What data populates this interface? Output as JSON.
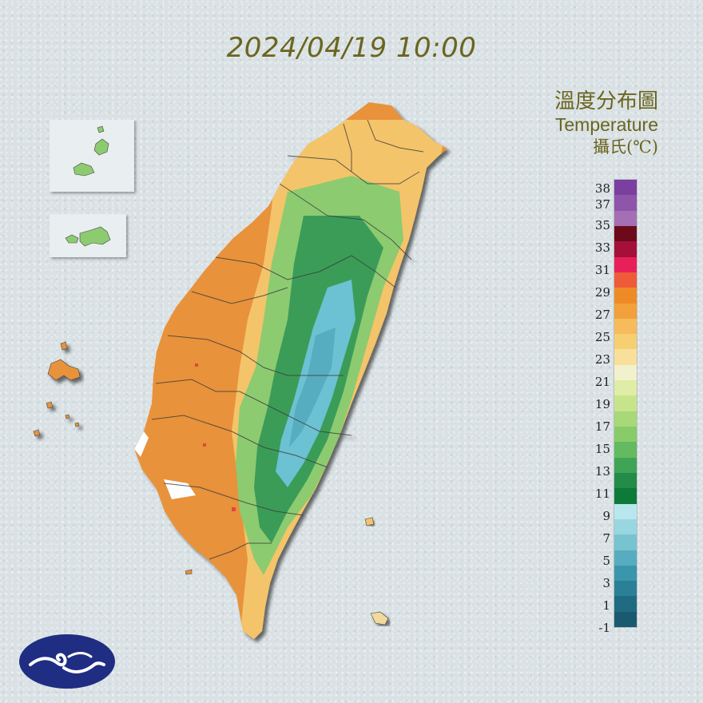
{
  "header": {
    "datetime": "2024/04/19 10:00"
  },
  "legend": {
    "title_zh": "溫度分布圖",
    "title_en": "Temperature",
    "unit": "攝氏(℃)",
    "ticks": [
      "38",
      "37",
      "35",
      "33",
      "31",
      "29",
      "27",
      "25",
      "23",
      "21",
      "19",
      "17",
      "15",
      "13",
      "11",
      "9",
      "7",
      "5",
      "3",
      "1",
      "-1"
    ],
    "colors": [
      "#7b3fa0",
      "#8e55aa",
      "#a46fb4",
      "#6d0a1a",
      "#a4103a",
      "#e8205a",
      "#ef5a3a",
      "#ef8b26",
      "#f2a03a",
      "#f6bc5c",
      "#f6cf73",
      "#f8e09a",
      "#f2f1cd",
      "#dfeda6",
      "#c8e48a",
      "#a8d877",
      "#88cc6a",
      "#63ba60",
      "#3fa455",
      "#238c48",
      "#0e7a3a",
      "#b9e7ee",
      "#98d6e0",
      "#78c3d0",
      "#57adbf",
      "#3a96ab",
      "#2a8096",
      "#206b82",
      "#1a5a70"
    ]
  },
  "map": {
    "islands": [
      "Matsu",
      "Kinmen",
      "Penghu",
      "Green Island",
      "Orchid Island",
      "Liuqiu"
    ],
    "mainland_colors": {
      "lowland": "#e8923a",
      "plain": "#f4c46a",
      "hills": "#7fc46a",
      "mountains": "#3b9c58",
      "peaks": "#6cc1d2"
    },
    "hotspot_color": "#e2463c"
  },
  "logo": {
    "icon": "cwa-cloud-wave-logo"
  }
}
